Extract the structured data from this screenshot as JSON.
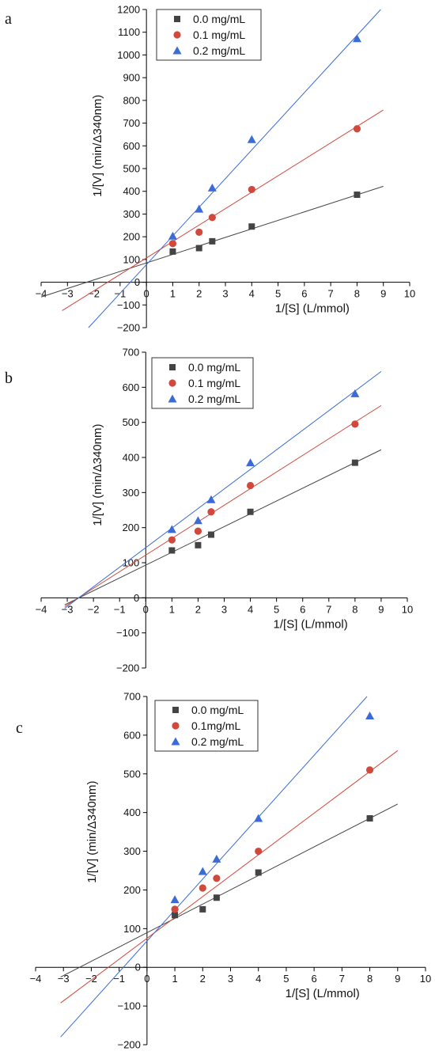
{
  "colors": {
    "s0": "#444444",
    "s1": "#d1483c",
    "s2": "#3a6bd6"
  },
  "chart_data": [
    {
      "panel": "a",
      "type": "scatter",
      "xlabel": "1/[S] (L/mmol)",
      "ylabel": "1/[V] (min/Δ340nm)",
      "xlim": [
        -4,
        10
      ],
      "ylim": [
        -200,
        1200
      ],
      "xticks": [
        -4,
        -3,
        -2,
        -1,
        0,
        1,
        2,
        3,
        4,
        5,
        6,
        7,
        8,
        9,
        10
      ],
      "yticks": [
        -200,
        -100,
        0,
        100,
        200,
        300,
        400,
        500,
        600,
        700,
        800,
        900,
        1000,
        1100,
        1200
      ],
      "legend": "top-left",
      "series": [
        {
          "name": "0.0 mg/mL",
          "marker": "square",
          "x": [
            1,
            2,
            2.5,
            4,
            8
          ],
          "y": [
            135,
            150,
            180,
            245,
            385
          ],
          "fit": {
            "x": [
              -4,
              9
            ],
            "y": [
              -65,
              422
            ]
          }
        },
        {
          "name": "0.1 mg/mL",
          "marker": "circle",
          "x": [
            1,
            2,
            2.5,
            4,
            8
          ],
          "y": [
            170,
            220,
            285,
            408,
            675
          ],
          "fit": {
            "x": [
              -3.2,
              9
            ],
            "y": [
              -125,
              758
            ]
          }
        },
        {
          "name": "0.2 mg/mL",
          "marker": "triangle",
          "x": [
            1,
            2,
            2.5,
            4,
            8
          ],
          "y": [
            203,
            322,
            415,
            628,
            1072
          ],
          "fit": {
            "x": [
              -2.2,
              8.9
            ],
            "y": [
              -200,
              1200
            ]
          }
        }
      ]
    },
    {
      "panel": "b",
      "type": "scatter",
      "xlabel": "1/[S] (L/mmol)",
      "ylabel": "1/[V] (min/Δ340nm)",
      "xlim": [
        -4,
        10
      ],
      "ylim": [
        -200,
        700
      ],
      "xticks": [
        -4,
        -3,
        -2,
        -1,
        0,
        1,
        2,
        3,
        4,
        5,
        6,
        7,
        8,
        9,
        10
      ],
      "yticks": [
        -200,
        -100,
        0,
        100,
        200,
        300,
        400,
        500,
        600,
        700
      ],
      "legend": "top-left",
      "series": [
        {
          "name": "0.0 mg/mL",
          "marker": "square",
          "x": [
            1,
            2,
            2.5,
            4,
            8
          ],
          "y": [
            135,
            150,
            180,
            245,
            385
          ],
          "fit": {
            "x": [
              -3.1,
              9
            ],
            "y": [
              -20,
              422
            ]
          }
        },
        {
          "name": "0.1 mg/mL",
          "marker": "circle",
          "x": [
            1,
            2,
            2.5,
            4,
            8
          ],
          "y": [
            165,
            190,
            245,
            320,
            495
          ],
          "fit": {
            "x": [
              -3.1,
              9
            ],
            "y": [
              -25,
              548
            ]
          }
        },
        {
          "name": "0.2 mg/mL",
          "marker": "triangle",
          "x": [
            1,
            2,
            2.5,
            4,
            8
          ],
          "y": [
            195,
            220,
            280,
            385,
            582
          ],
          "fit": {
            "x": [
              -3.1,
              9
            ],
            "y": [
              -30,
              645
            ]
          }
        }
      ]
    },
    {
      "panel": "c",
      "type": "scatter",
      "xlabel": "1/[S] (L/mmol)",
      "ylabel": "1/[V] (min/Δ340nm)",
      "xlim": [
        -4,
        10
      ],
      "ylim": [
        -200,
        700
      ],
      "xticks": [
        -4,
        -3,
        -2,
        -1,
        0,
        1,
        2,
        3,
        4,
        5,
        6,
        7,
        8,
        9,
        10
      ],
      "yticks": [
        -200,
        -100,
        0,
        100,
        200,
        300,
        400,
        500,
        600,
        700
      ],
      "legend": "top-left",
      "series": [
        {
          "name": "0.0 mg/mL",
          "marker": "square",
          "x": [
            1,
            2,
            2.5,
            4,
            8
          ],
          "y": [
            135,
            150,
            180,
            245,
            385
          ],
          "fit": {
            "x": [
              -3.1,
              9
            ],
            "y": [
              -25,
              422
            ]
          }
        },
        {
          "name": "0.1mg/mL",
          "marker": "circle",
          "x": [
            1,
            2,
            2.5,
            4,
            8
          ],
          "y": [
            150,
            205,
            230,
            300,
            510
          ],
          "fit": {
            "x": [
              -3.1,
              9
            ],
            "y": [
              -92,
              560
            ]
          }
        },
        {
          "name": "0.2 mg/mL",
          "marker": "triangle",
          "x": [
            1,
            2,
            2.5,
            4,
            8
          ],
          "y": [
            175,
            248,
            280,
            385,
            650
          ],
          "fit": {
            "x": [
              -3.1,
              7.9
            ],
            "y": [
              -180,
              700
            ]
          }
        }
      ]
    }
  ]
}
